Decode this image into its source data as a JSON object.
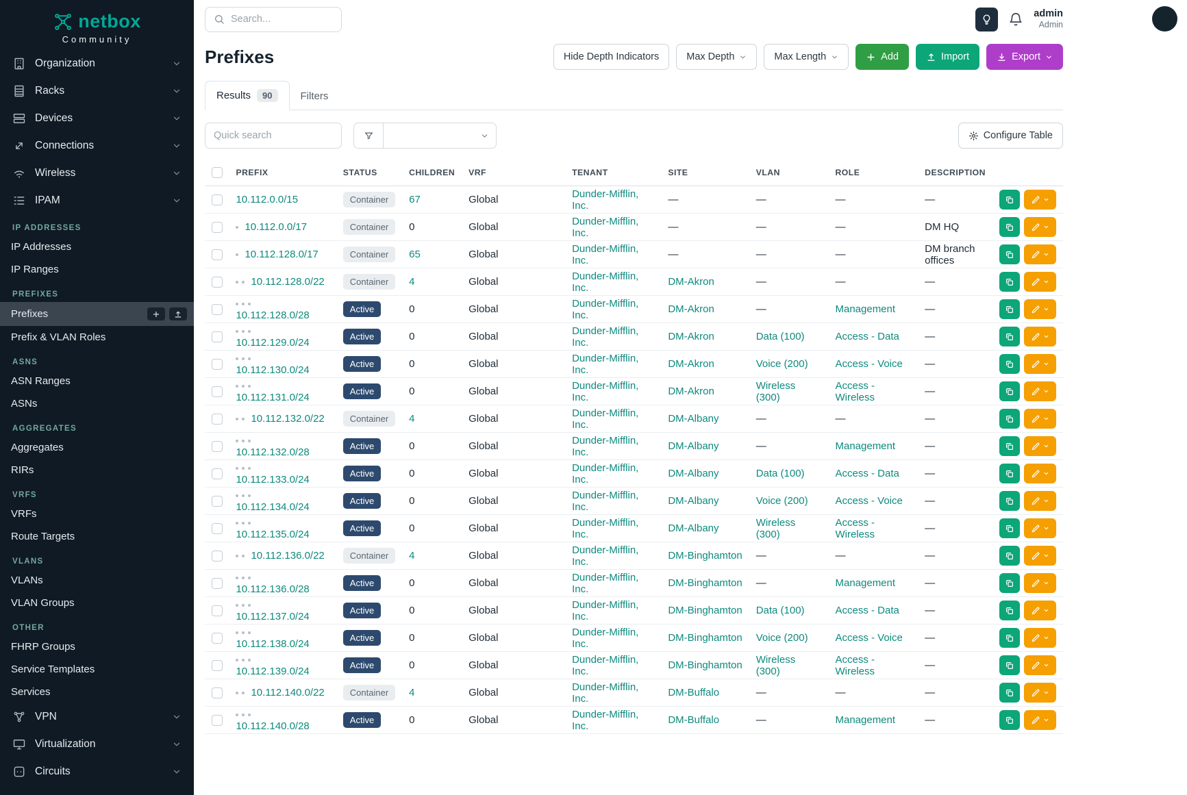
{
  "colors": {
    "sidebar_bg": "#0f1a24",
    "brand_teal": "#00a896",
    "link_teal": "#0d8a7e",
    "status_active_bg": "#2d4a6e",
    "status_container_bg": "#e9edf0",
    "add_green": "#2f9e44",
    "import_teal": "#0ca678",
    "export_purple": "#ae3ec9",
    "edit_orange": "#f59f00"
  },
  "brand": {
    "name": "netbox",
    "subtitle": "Community"
  },
  "topbar": {
    "search_placeholder": "Search...",
    "user": {
      "name": "admin",
      "role": "Admin"
    }
  },
  "sidebar": {
    "nav": [
      {
        "label": "Organization",
        "icon": "building-icon"
      },
      {
        "label": "Racks",
        "icon": "rack-icon"
      },
      {
        "label": "Devices",
        "icon": "devices-icon"
      },
      {
        "label": "Connections",
        "icon": "connections-icon"
      },
      {
        "label": "Wireless",
        "icon": "wifi-icon"
      },
      {
        "label": "IPAM",
        "icon": "ipam-icon"
      }
    ],
    "ipam_sections": [
      {
        "title": "IP ADDRESSES",
        "items": [
          "IP Addresses",
          "IP Ranges"
        ]
      },
      {
        "title": "PREFIXES",
        "items": [
          "Prefixes",
          "Prefix & VLAN Roles"
        ],
        "active": "Prefixes"
      },
      {
        "title": "ASNS",
        "items": [
          "ASN Ranges",
          "ASNs"
        ]
      },
      {
        "title": "AGGREGATES",
        "items": [
          "Aggregates",
          "RIRs"
        ]
      },
      {
        "title": "VRFS",
        "items": [
          "VRFs",
          "Route Targets"
        ]
      },
      {
        "title": "VLANS",
        "items": [
          "VLANs",
          "VLAN Groups"
        ]
      },
      {
        "title": "OTHER",
        "items": [
          "FHRP Groups",
          "Service Templates",
          "Services"
        ]
      }
    ],
    "nav_bottom": [
      {
        "label": "VPN",
        "icon": "vpn-icon"
      },
      {
        "label": "Virtualization",
        "icon": "virtualization-icon"
      },
      {
        "label": "Circuits",
        "icon": "circuits-icon"
      }
    ]
  },
  "page": {
    "title": "Prefixes",
    "buttons": {
      "hide_depth": "Hide Depth Indicators",
      "max_depth": "Max Depth",
      "max_length": "Max Length",
      "add": "Add",
      "import": "Import",
      "export": "Export"
    },
    "tabs": {
      "results": "Results",
      "results_count": "90",
      "filters": "Filters"
    },
    "quick_search_placeholder": "Quick search",
    "configure_table": "Configure Table"
  },
  "table": {
    "columns": [
      "PREFIX",
      "STATUS",
      "CHILDREN",
      "VRF",
      "TENANT",
      "SITE",
      "VLAN",
      "ROLE",
      "DESCRIPTION"
    ],
    "rows": [
      {
        "depth": 0,
        "prefix": "10.112.0.0/15",
        "status": "Container",
        "children": "67",
        "vrf": "Global",
        "tenant": "Dunder-Mifflin, Inc.",
        "site": "—",
        "vlan": "—",
        "role": "—",
        "description": "—"
      },
      {
        "depth": 1,
        "prefix": "10.112.0.0/17",
        "status": "Container",
        "children": "0",
        "vrf": "Global",
        "tenant": "Dunder-Mifflin, Inc.",
        "site": "—",
        "vlan": "—",
        "role": "—",
        "description": "DM HQ"
      },
      {
        "depth": 1,
        "prefix": "10.112.128.0/17",
        "status": "Container",
        "children": "65",
        "vrf": "Global",
        "tenant": "Dunder-Mifflin, Inc.",
        "site": "—",
        "vlan": "—",
        "role": "—",
        "description": "DM branch offices"
      },
      {
        "depth": 2,
        "prefix": "10.112.128.0/22",
        "status": "Container",
        "children": "4",
        "vrf": "Global",
        "tenant": "Dunder-Mifflin, Inc.",
        "site": "DM-Akron",
        "vlan": "—",
        "role": "—",
        "description": "—"
      },
      {
        "depth": 3,
        "prefix": "10.112.128.0/28",
        "status": "Active",
        "children": "0",
        "vrf": "Global",
        "tenant": "Dunder-Mifflin, Inc.",
        "site": "DM-Akron",
        "vlan": "—",
        "role": "Management",
        "description": "—"
      },
      {
        "depth": 3,
        "prefix": "10.112.129.0/24",
        "status": "Active",
        "children": "0",
        "vrf": "Global",
        "tenant": "Dunder-Mifflin, Inc.",
        "site": "DM-Akron",
        "vlan": "Data (100)",
        "role": "Access - Data",
        "description": "—"
      },
      {
        "depth": 3,
        "prefix": "10.112.130.0/24",
        "status": "Active",
        "children": "0",
        "vrf": "Global",
        "tenant": "Dunder-Mifflin, Inc.",
        "site": "DM-Akron",
        "vlan": "Voice (200)",
        "role": "Access - Voice",
        "description": "—"
      },
      {
        "depth": 3,
        "prefix": "10.112.131.0/24",
        "status": "Active",
        "children": "0",
        "vrf": "Global",
        "tenant": "Dunder-Mifflin, Inc.",
        "site": "DM-Akron",
        "vlan": "Wireless (300)",
        "role": "Access - Wireless",
        "description": "—"
      },
      {
        "depth": 2,
        "prefix": "10.112.132.0/22",
        "status": "Container",
        "children": "4",
        "vrf": "Global",
        "tenant": "Dunder-Mifflin, Inc.",
        "site": "DM-Albany",
        "vlan": "—",
        "role": "—",
        "description": "—"
      },
      {
        "depth": 3,
        "prefix": "10.112.132.0/28",
        "status": "Active",
        "children": "0",
        "vrf": "Global",
        "tenant": "Dunder-Mifflin, Inc.",
        "site": "DM-Albany",
        "vlan": "—",
        "role": "Management",
        "description": "—"
      },
      {
        "depth": 3,
        "prefix": "10.112.133.0/24",
        "status": "Active",
        "children": "0",
        "vrf": "Global",
        "tenant": "Dunder-Mifflin, Inc.",
        "site": "DM-Albany",
        "vlan": "Data (100)",
        "role": "Access - Data",
        "description": "—"
      },
      {
        "depth": 3,
        "prefix": "10.112.134.0/24",
        "status": "Active",
        "children": "0",
        "vrf": "Global",
        "tenant": "Dunder-Mifflin, Inc.",
        "site": "DM-Albany",
        "vlan": "Voice (200)",
        "role": "Access - Voice",
        "description": "—"
      },
      {
        "depth": 3,
        "prefix": "10.112.135.0/24",
        "status": "Active",
        "children": "0",
        "vrf": "Global",
        "tenant": "Dunder-Mifflin, Inc.",
        "site": "DM-Albany",
        "vlan": "Wireless (300)",
        "role": "Access - Wireless",
        "description": "—"
      },
      {
        "depth": 2,
        "prefix": "10.112.136.0/22",
        "status": "Container",
        "children": "4",
        "vrf": "Global",
        "tenant": "Dunder-Mifflin, Inc.",
        "site": "DM-Binghamton",
        "vlan": "—",
        "role": "—",
        "description": "—"
      },
      {
        "depth": 3,
        "prefix": "10.112.136.0/28",
        "status": "Active",
        "children": "0",
        "vrf": "Global",
        "tenant": "Dunder-Mifflin, Inc.",
        "site": "DM-Binghamton",
        "vlan": "—",
        "role": "Management",
        "description": "—"
      },
      {
        "depth": 3,
        "prefix": "10.112.137.0/24",
        "status": "Active",
        "children": "0",
        "vrf": "Global",
        "tenant": "Dunder-Mifflin, Inc.",
        "site": "DM-Binghamton",
        "vlan": "Data (100)",
        "role": "Access - Data",
        "description": "—"
      },
      {
        "depth": 3,
        "prefix": "10.112.138.0/24",
        "status": "Active",
        "children": "0",
        "vrf": "Global",
        "tenant": "Dunder-Mifflin, Inc.",
        "site": "DM-Binghamton",
        "vlan": "Voice (200)",
        "role": "Access - Voice",
        "description": "—"
      },
      {
        "depth": 3,
        "prefix": "10.112.139.0/24",
        "status": "Active",
        "children": "0",
        "vrf": "Global",
        "tenant": "Dunder-Mifflin, Inc.",
        "site": "DM-Binghamton",
        "vlan": "Wireless (300)",
        "role": "Access - Wireless",
        "description": "—"
      },
      {
        "depth": 2,
        "prefix": "10.112.140.0/22",
        "status": "Container",
        "children": "4",
        "vrf": "Global",
        "tenant": "Dunder-Mifflin, Inc.",
        "site": "DM-Buffalo",
        "vlan": "—",
        "role": "—",
        "description": "—"
      },
      {
        "depth": 3,
        "prefix": "10.112.140.0/28",
        "status": "Active",
        "children": "0",
        "vrf": "Global",
        "tenant": "Dunder-Mifflin, Inc.",
        "site": "DM-Buffalo",
        "vlan": "—",
        "role": "Management",
        "description": "—"
      }
    ]
  }
}
